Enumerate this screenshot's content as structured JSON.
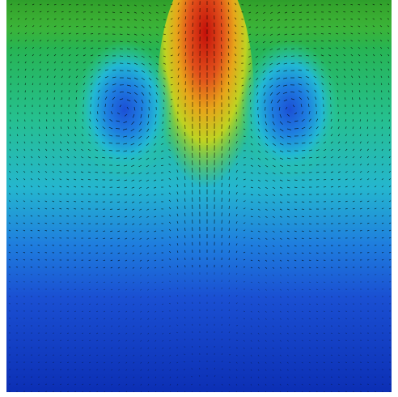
{
  "figure": {
    "kind": "velocity-vector field over colored magnitude contour",
    "colormap": [
      "#0a2db8",
      "#1f5ce0",
      "#23a6d6",
      "#2fd2bf",
      "#2bc46a",
      "#38b12b",
      "#d9d91f",
      "#f0a000",
      "#e0461e",
      "#c00d06"
    ],
    "vortices": 2,
    "vector_color": "#000000"
  }
}
